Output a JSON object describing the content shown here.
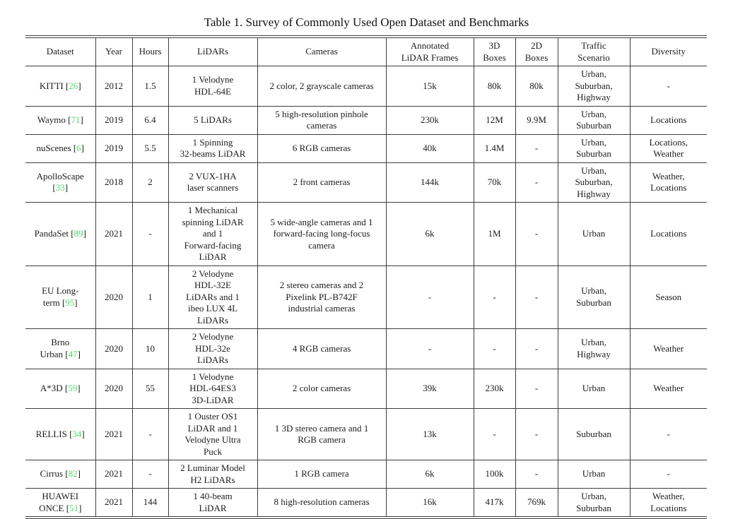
{
  "title": "Table 1. Survey of Commonly Used Open Dataset and Benchmarks",
  "punct": {
    "open": "[",
    "close": "]"
  },
  "accent_colors": {
    "citation_green": "#52d86a",
    "rule_color": "#3c3c3c"
  },
  "columns": {
    "dataset": "Dataset",
    "year": "Year",
    "hours": "Hours",
    "lidars": "LiDARs",
    "cameras": "Cameras",
    "frames": "Annotated\nLiDAR Frames",
    "boxes3d": "3D\nBoxes",
    "boxes2d": "2D\nBoxes",
    "scenario": "Traffic\nScenario",
    "diversity": "Diversity"
  },
  "rows": [
    {
      "name": "KITTI ",
      "cite": "26",
      "year": "2012",
      "hours": "1.5",
      "lidars": "1 Velodyne\nHDL-64E",
      "cameras": "2 color, 2 grayscale cameras",
      "frames": "15k",
      "boxes3d": "80k",
      "boxes2d": "80k",
      "scenario": "Urban,\nSuburban,\nHighway",
      "diversity": "-"
    },
    {
      "name": "Waymo ",
      "cite": "71",
      "year": "2019",
      "hours": "6.4",
      "lidars": "5 LiDARs",
      "cameras": "5 high-resolution pinhole\ncameras",
      "frames": "230k",
      "boxes3d": "12M",
      "boxes2d": "9.9M",
      "scenario": "Urban,\nSuburban",
      "diversity": "Locations"
    },
    {
      "name": "nuScenes ",
      "cite": "6",
      "year": "2019",
      "hours": "5.5",
      "lidars": "1 Spinning\n32-beams LiDAR",
      "cameras": "6 RGB cameras",
      "frames": "40k",
      "boxes3d": "1.4M",
      "boxes2d": "-",
      "scenario": "Urban,\nSuburban",
      "diversity": "Locations,\nWeather"
    },
    {
      "name": "ApolloScape\n",
      "cite": "33",
      "year": "2018",
      "hours": "2",
      "lidars": "2 VUX-1HA\nlaser scanners",
      "cameras": "2 front cameras",
      "frames": "144k",
      "boxes3d": "70k",
      "boxes2d": "-",
      "scenario": "Urban,\nSuburban,\nHighway",
      "diversity": "Weather,\nLocations"
    },
    {
      "name": "PandaSet ",
      "cite": "89",
      "year": "2021",
      "hours": "-",
      "lidars": "1 Mechanical\nspinning LiDAR\nand 1\nForward-facing\nLiDAR",
      "cameras": "5 wide-angle cameras and 1\nforward-facing long-focus\ncamera",
      "frames": "6k",
      "boxes3d": "1M",
      "boxes2d": "-",
      "scenario": "Urban",
      "diversity": "Locations"
    },
    {
      "name": "EU Long-\nterm ",
      "cite": "95",
      "year": "2020",
      "hours": "1",
      "lidars": "2 Velodyne\nHDL-32E\nLiDARs and 1\nibeo LUX 4L\nLiDARs",
      "cameras": "2 stereo cameras and 2\nPixelink PL-B742F\nindustrial cameras",
      "frames": "-",
      "boxes3d": "-",
      "boxes2d": "-",
      "scenario": "Urban,\nSuburban",
      "diversity": "Season"
    },
    {
      "name": "Brno\nUrban ",
      "cite": "47",
      "year": "2020",
      "hours": "10",
      "lidars": "2 Velodyne\nHDL-32e\nLiDARs",
      "cameras": "4 RGB cameras",
      "frames": "-",
      "boxes3d": "-",
      "boxes2d": "-",
      "scenario": "Urban,\nHighway",
      "diversity": "Weather"
    },
    {
      "name": "A*3D ",
      "cite": "59",
      "year": "2020",
      "hours": "55",
      "lidars": "1 Velodyne\nHDL-64ES3\n3D-LiDAR",
      "cameras": "2 color cameras",
      "frames": "39k",
      "boxes3d": "230k",
      "boxes2d": "-",
      "scenario": "Urban",
      "diversity": "Weather"
    },
    {
      "name": "RELLIS ",
      "cite": "34",
      "year": "2021",
      "hours": "-",
      "lidars": "1 Ouster OS1\nLiDAR and 1\nVelodyne Ultra\nPuck",
      "cameras": "1 3D stereo camera and 1\nRGB camera",
      "frames": "13k",
      "boxes3d": "-",
      "boxes2d": "-",
      "scenario": "Suburban",
      "diversity": "-"
    },
    {
      "name": "Cirrus ",
      "cite": "82",
      "year": "2021",
      "hours": "-",
      "lidars": "2 Luminar Model\nH2 LiDARs",
      "cameras": "1 RGB camera",
      "frames": "6k",
      "boxes3d": "100k",
      "boxes2d": "-",
      "scenario": "Urban",
      "diversity": "-"
    },
    {
      "name": "HUAWEI\nONCE ",
      "cite": "51",
      "year": "2021",
      "hours": "144",
      "lidars": "1 40-beam\nLiDAR",
      "cameras": "8 high-resolution cameras",
      "frames": "16k",
      "boxes3d": "417k",
      "boxes2d": "769k",
      "scenario": "Urban,\nSuburban",
      "diversity": "Weather,\nLocations"
    }
  ]
}
